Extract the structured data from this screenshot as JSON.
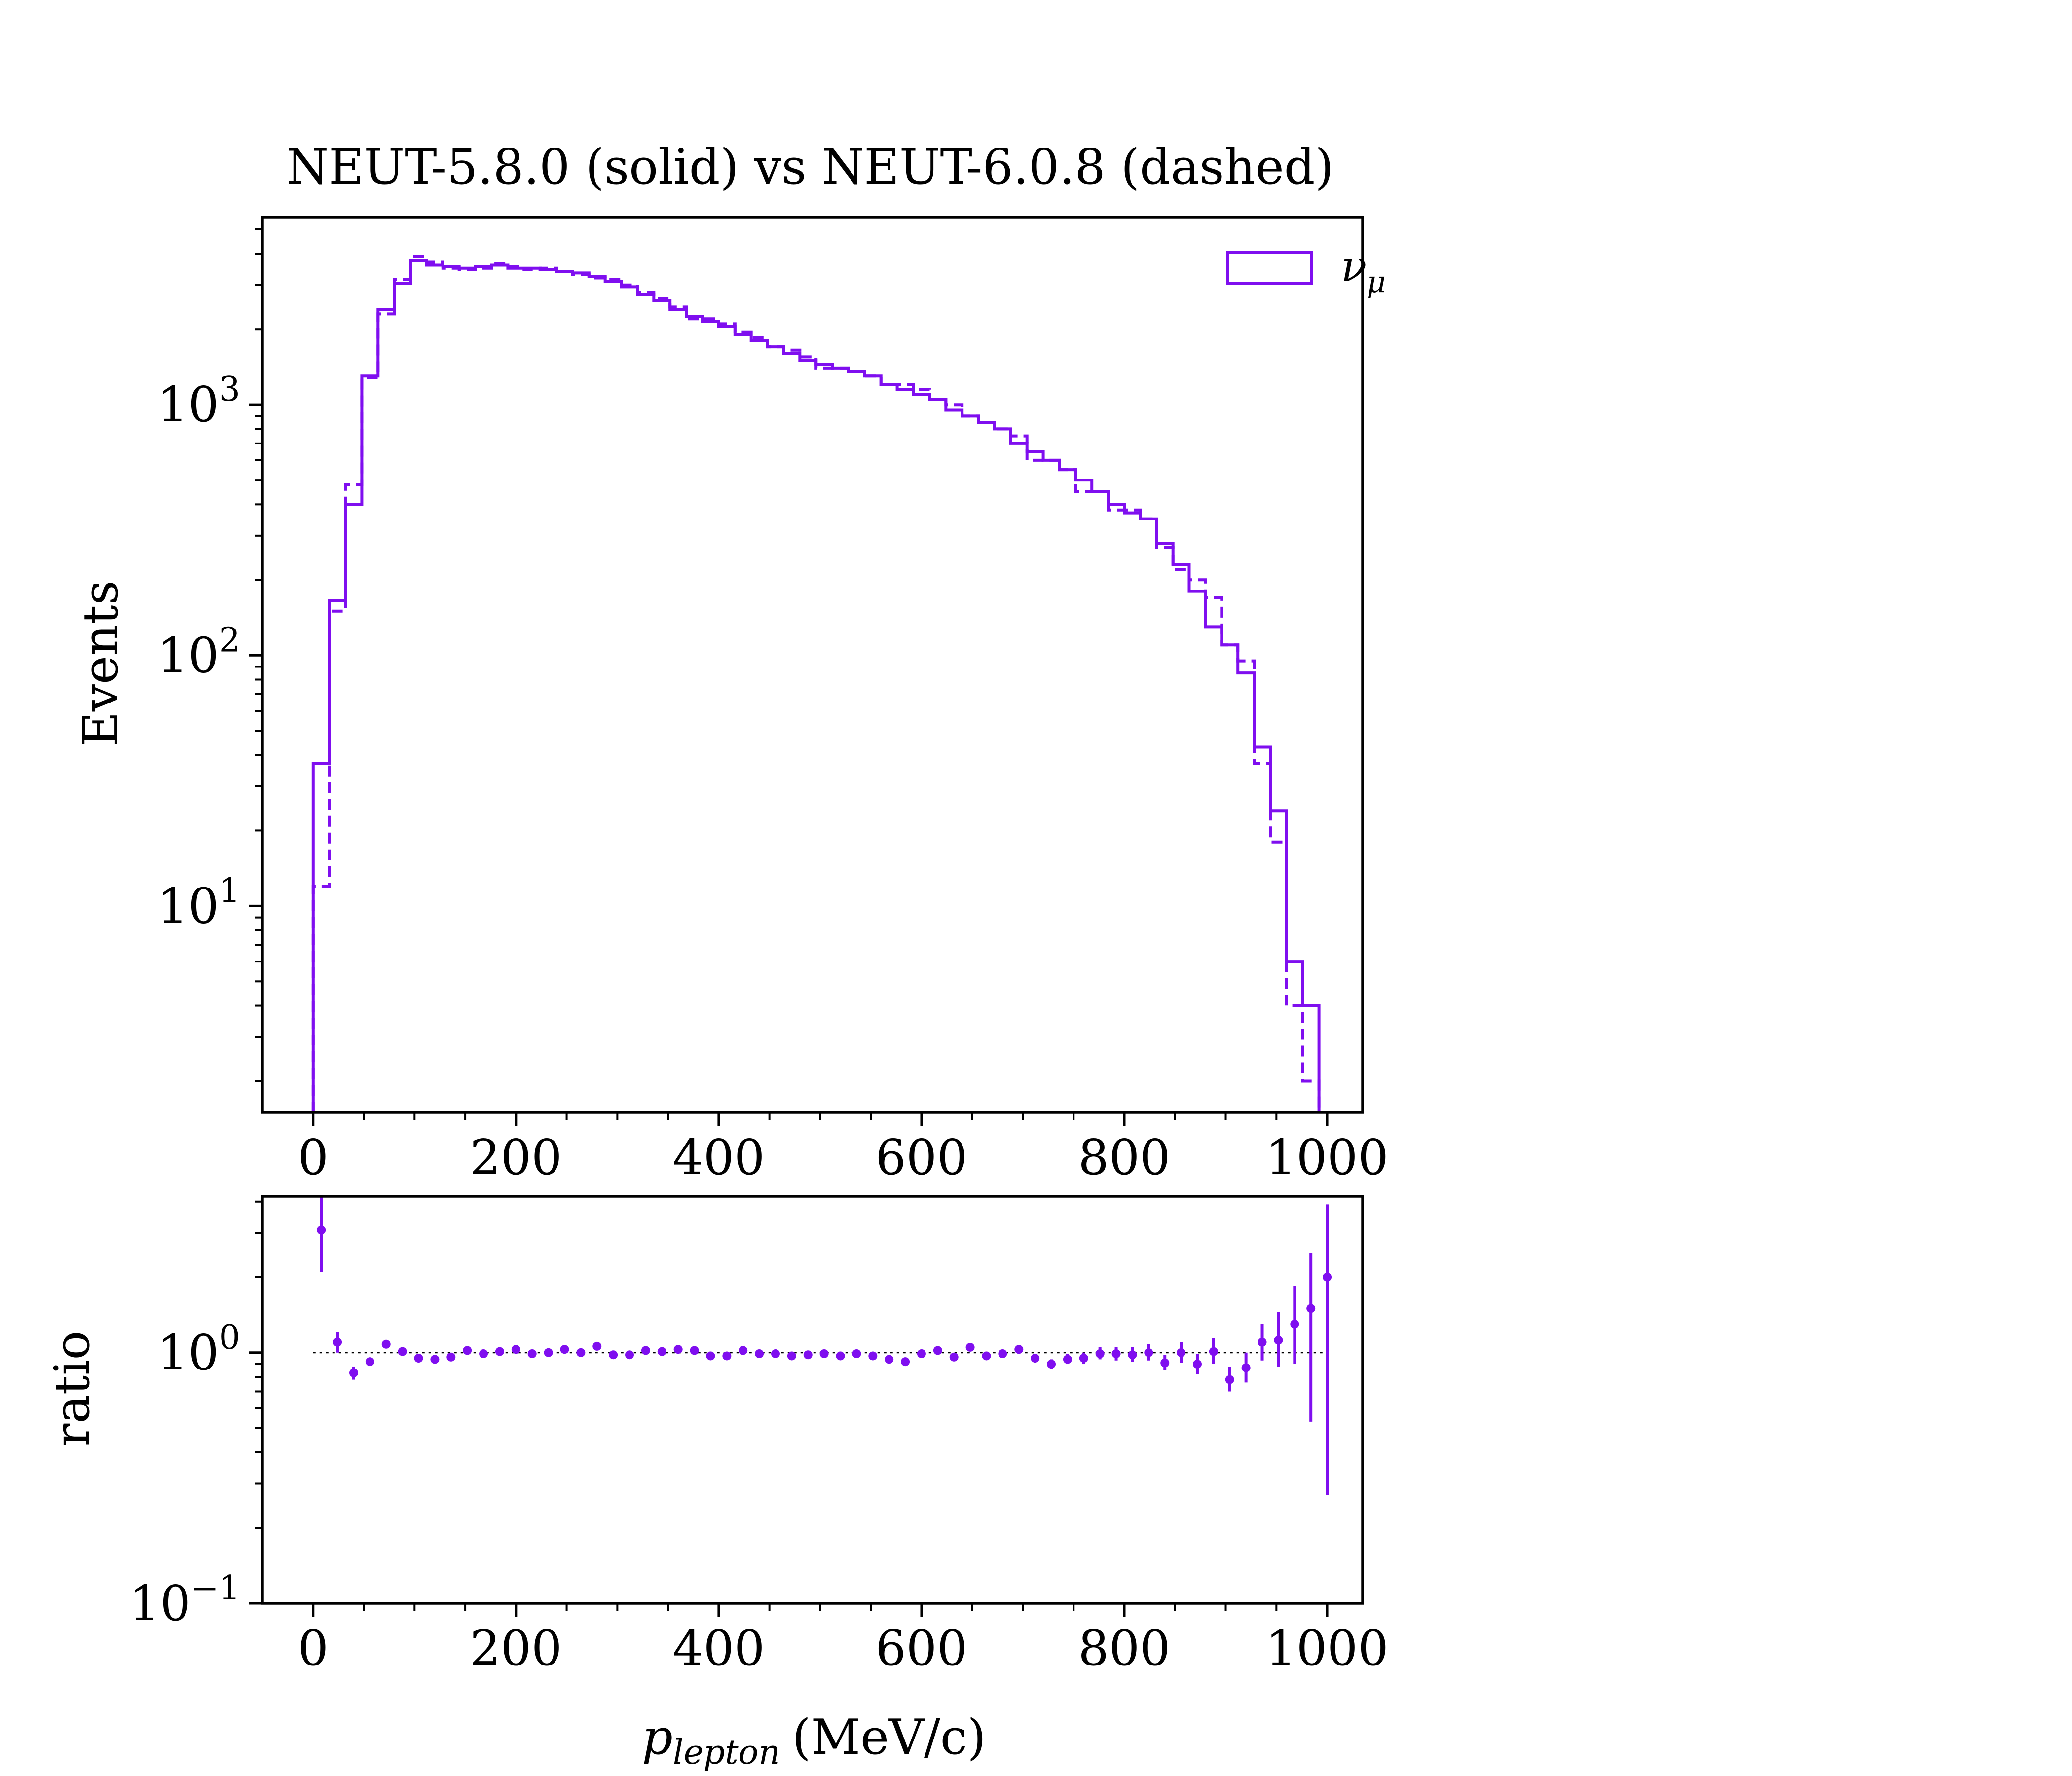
{
  "chart_data": [
    {
      "type": "histogram",
      "title": "NEUT-5.8.0 (solid) vs NEUT-6.0.8 (dashed)",
      "ylabel": "Events",
      "yscale": "log",
      "ylim": [
        1.5,
        5600
      ],
      "xlim": [
        -50,
        1035
      ],
      "xticks": [
        "0",
        "200",
        "400",
        "600",
        "800",
        "1000"
      ],
      "yticks": [
        {
          "value": 1000,
          "base": "10",
          "exp": "3"
        },
        {
          "value": 100,
          "base": "10",
          "exp": "2"
        },
        {
          "value": 10,
          "base": "10",
          "exp": "1"
        }
      ],
      "legend": {
        "placement": "top-right",
        "entries": [
          {
            "label_base": "ν",
            "label_sub": "μ"
          }
        ]
      },
      "bin_edges": [
        0,
        16,
        32,
        48,
        64,
        80,
        96,
        112,
        128,
        144,
        160,
        176,
        192,
        208,
        224,
        240,
        256,
        272,
        288,
        304,
        320,
        336,
        352,
        368,
        384,
        400,
        416,
        432,
        448,
        464,
        480,
        496,
        512,
        528,
        544,
        560,
        576,
        592,
        608,
        624,
        640,
        656,
        672,
        688,
        704,
        720,
        736,
        752,
        768,
        784,
        800,
        816,
        832,
        848,
        864,
        880,
        896,
        912,
        928,
        944,
        960,
        976,
        992
      ],
      "series": [
        {
          "style": "solid",
          "values": [
            37,
            165,
            400,
            1300,
            2400,
            3050,
            3750,
            3600,
            3550,
            3500,
            3550,
            3600,
            3500,
            3500,
            3450,
            3400,
            3350,
            3250,
            3100,
            2950,
            2750,
            2600,
            2400,
            2250,
            2150,
            2050,
            1900,
            1800,
            1700,
            1600,
            1500,
            1450,
            1400,
            1350,
            1300,
            1200,
            1150,
            1100,
            1050,
            950,
            900,
            850,
            800,
            700,
            650,
            600,
            550,
            500,
            450,
            400,
            370,
            350,
            280,
            230,
            180,
            130,
            110,
            85,
            43,
            24,
            6,
            4
          ]
        },
        {
          "style": "dashed",
          "values": [
            12,
            150,
            480,
            1280,
            2300,
            3150,
            3900,
            3700,
            3500,
            3450,
            3500,
            3650,
            3550,
            3450,
            3500,
            3400,
            3300,
            3200,
            3150,
            3000,
            2800,
            2650,
            2450,
            2200,
            2200,
            2100,
            1950,
            1850,
            1700,
            1650,
            1550,
            1400,
            1400,
            1350,
            1300,
            1200,
            1200,
            1150,
            1050,
            1000,
            900,
            850,
            800,
            750,
            600,
            600,
            550,
            450,
            450,
            380,
            380,
            350,
            270,
            220,
            200,
            170,
            110,
            95,
            37,
            18,
            4,
            2
          ]
        }
      ]
    },
    {
      "type": "scatter",
      "ylabel": "ratio",
      "xlabel_base": "p",
      "xlabel_sub": "lepton",
      "xlabel_unit": "(MeV/c)",
      "yscale": "log",
      "ylim": [
        0.1,
        4.2
      ],
      "xlim": [
        -50,
        1035
      ],
      "xticks": [
        "0",
        "200",
        "400",
        "600",
        "800",
        "1000"
      ],
      "yticks": [
        {
          "value": 1,
          "base": "10",
          "exp": "0"
        },
        {
          "value": 0.1,
          "base": "10",
          "exp": "−1"
        }
      ],
      "reference_line": 1,
      "points": [
        {
          "x": 8,
          "y": 3.08,
          "lo": 2.1,
          "hi": 4.2
        },
        {
          "x": 24,
          "y": 1.1,
          "lo": 1.0,
          "hi": 1.21
        },
        {
          "x": 40,
          "y": 0.83,
          "lo": 0.78,
          "hi": 0.88
        },
        {
          "x": 56,
          "y": 0.92,
          "lo": 0.89,
          "hi": 0.95
        },
        {
          "x": 72,
          "y": 1.08,
          "lo": 1.05,
          "hi": 1.11
        },
        {
          "x": 88,
          "y": 1.01
        },
        {
          "x": 104,
          "y": 0.95
        },
        {
          "x": 120,
          "y": 0.94
        },
        {
          "x": 136,
          "y": 0.96
        },
        {
          "x": 152,
          "y": 1.02
        },
        {
          "x": 168,
          "y": 0.99
        },
        {
          "x": 184,
          "y": 1.01
        },
        {
          "x": 200,
          "y": 1.03
        },
        {
          "x": 216,
          "y": 0.99
        },
        {
          "x": 232,
          "y": 1.0
        },
        {
          "x": 248,
          "y": 1.03
        },
        {
          "x": 264,
          "y": 1.0
        },
        {
          "x": 280,
          "y": 1.06
        },
        {
          "x": 296,
          "y": 0.98
        },
        {
          "x": 312,
          "y": 0.98
        },
        {
          "x": 328,
          "y": 1.02
        },
        {
          "x": 344,
          "y": 1.01
        },
        {
          "x": 360,
          "y": 1.03
        },
        {
          "x": 376,
          "y": 1.02
        },
        {
          "x": 392,
          "y": 0.97
        },
        {
          "x": 408,
          "y": 0.97
        },
        {
          "x": 424,
          "y": 1.02
        },
        {
          "x": 440,
          "y": 0.99
        },
        {
          "x": 456,
          "y": 0.99
        },
        {
          "x": 472,
          "y": 0.97
        },
        {
          "x": 488,
          "y": 0.98
        },
        {
          "x": 504,
          "y": 0.99
        },
        {
          "x": 520,
          "y": 0.97
        },
        {
          "x": 536,
          "y": 0.99
        },
        {
          "x": 552,
          "y": 0.97
        },
        {
          "x": 568,
          "y": 0.94
        },
        {
          "x": 584,
          "y": 0.92
        },
        {
          "x": 600,
          "y": 0.99
        },
        {
          "x": 616,
          "y": 1.02
        },
        {
          "x": 632,
          "y": 0.96
        },
        {
          "x": 648,
          "y": 1.05
        },
        {
          "x": 664,
          "y": 0.97
        },
        {
          "x": 680,
          "y": 0.99
        },
        {
          "x": 696,
          "y": 1.03,
          "lo": 0.99,
          "hi": 1.07
        },
        {
          "x": 712,
          "y": 0.95,
          "lo": 0.91,
          "hi": 0.99
        },
        {
          "x": 728,
          "y": 0.9,
          "lo": 0.86,
          "hi": 0.94
        },
        {
          "x": 744,
          "y": 0.94,
          "lo": 0.9,
          "hi": 0.99
        },
        {
          "x": 760,
          "y": 0.95,
          "lo": 0.9,
          "hi": 1.0
        },
        {
          "x": 776,
          "y": 0.99,
          "lo": 0.94,
          "hi": 1.05
        },
        {
          "x": 792,
          "y": 0.99,
          "lo": 0.93,
          "hi": 1.05
        },
        {
          "x": 808,
          "y": 0.98,
          "lo": 0.92,
          "hi": 1.05
        },
        {
          "x": 824,
          "y": 1.0,
          "lo": 0.93,
          "hi": 1.08
        },
        {
          "x": 840,
          "y": 0.91,
          "lo": 0.85,
          "hi": 0.98
        },
        {
          "x": 856,
          "y": 1.0,
          "lo": 0.91,
          "hi": 1.1
        },
        {
          "x": 872,
          "y": 0.9,
          "lo": 0.82,
          "hi": 0.99
        },
        {
          "x": 888,
          "y": 1.01,
          "lo": 0.9,
          "hi": 1.14
        },
        {
          "x": 904,
          "y": 0.78,
          "lo": 0.7,
          "hi": 0.88
        },
        {
          "x": 920,
          "y": 0.87,
          "lo": 0.76,
          "hi": 1.0
        },
        {
          "x": 936,
          "y": 1.1,
          "lo": 0.93,
          "hi": 1.3
        },
        {
          "x": 952,
          "y": 1.12,
          "lo": 0.88,
          "hi": 1.45
        },
        {
          "x": 968,
          "y": 1.3,
          "lo": 0.9,
          "hi": 1.85
        },
        {
          "x": 984,
          "y": 1.5,
          "lo": 0.53,
          "hi": 2.5
        },
        {
          "x": 1000,
          "y": 2.0,
          "lo": 0.27,
          "hi": 3.9
        }
      ]
    }
  ],
  "colors": {
    "series": "#7f0eef",
    "axes": "#000000",
    "reference_line": "#000000",
    "background": "#ffffff"
  }
}
